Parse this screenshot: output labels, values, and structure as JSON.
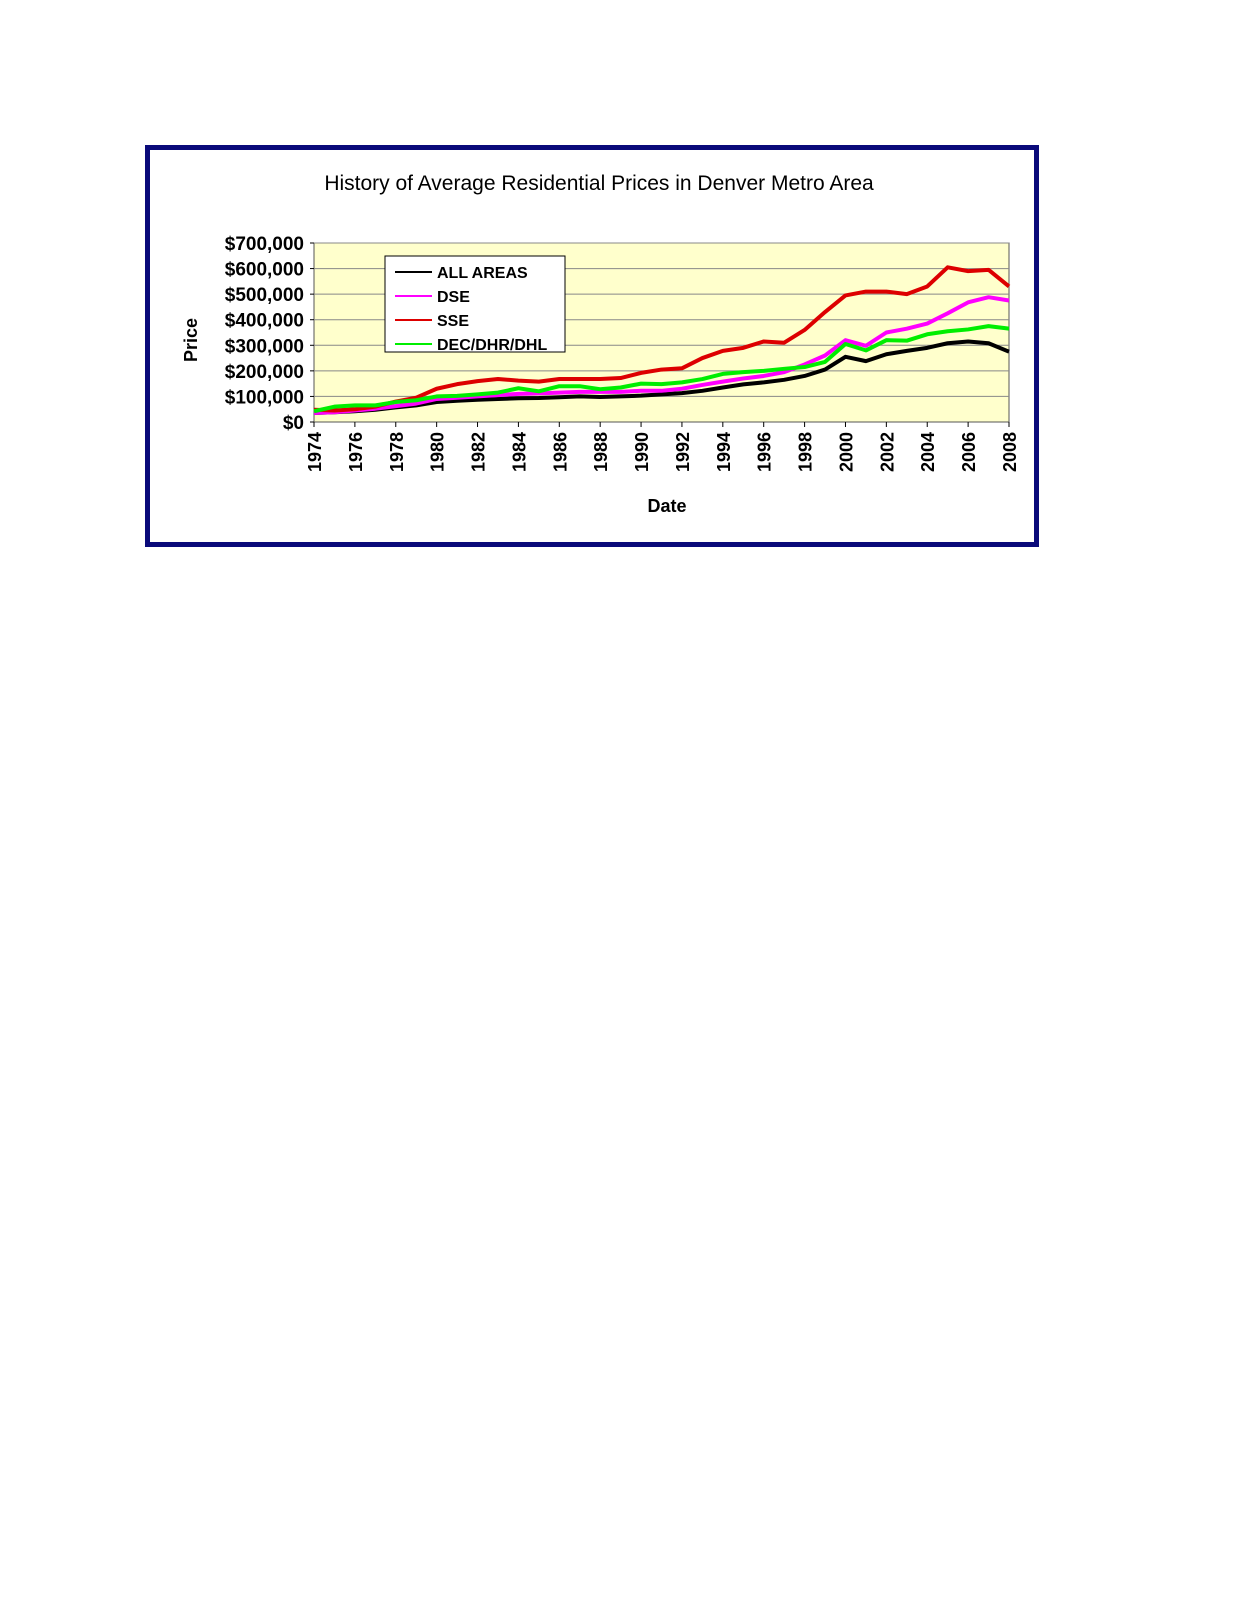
{
  "chart_data": {
    "type": "line",
    "title": "History of Average Residential Prices in Denver Metro Area",
    "xlabel": "Date",
    "ylabel": "Price",
    "ylim": [
      0,
      700000
    ],
    "yticks": [
      "$0",
      "$100,000",
      "$200,000",
      "$300,000",
      "$400,000",
      "$500,000",
      "$600,000",
      "$700,000"
    ],
    "xticks": [
      "1974",
      "1976",
      "1978",
      "1980",
      "1982",
      "1984",
      "1986",
      "1988",
      "1990",
      "1992",
      "1994",
      "1996",
      "1998",
      "2000",
      "2002",
      "2004",
      "2006",
      "2008"
    ],
    "x": [
      1974,
      1975,
      1976,
      1977,
      1978,
      1979,
      1980,
      1981,
      1982,
      1983,
      1984,
      1985,
      1986,
      1987,
      1988,
      1989,
      1990,
      1991,
      1992,
      1993,
      1994,
      1995,
      1996,
      1997,
      1998,
      1999,
      2000,
      2001,
      2002,
      2003,
      2004,
      2005,
      2006,
      2007,
      2008
    ],
    "grid": true,
    "legend": "top-left",
    "plot_background": "#ffffcc",
    "series": [
      {
        "name": "ALL AREAS",
        "color": "#000000",
        "values": [
          35000,
          38000,
          42000,
          48000,
          57000,
          65000,
          78000,
          83000,
          87000,
          90000,
          93000,
          94000,
          97000,
          100000,
          98000,
          100000,
          103000,
          108000,
          113000,
          122000,
          135000,
          147000,
          155000,
          165000,
          180000,
          205000,
          255000,
          238000,
          265000,
          278000,
          290000,
          308000,
          315000,
          308000,
          275000
        ]
      },
      {
        "name": "DSE",
        "color": "#ff00ff",
        "values": [
          35000,
          38000,
          45000,
          52000,
          62000,
          72000,
          90000,
          95000,
          100000,
          105000,
          110000,
          112000,
          115000,
          118000,
          118000,
          118000,
          122000,
          122000,
          130000,
          145000,
          158000,
          170000,
          180000,
          195000,
          225000,
          260000,
          320000,
          298000,
          350000,
          365000,
          385000,
          425000,
          468000,
          488000,
          475000
        ]
      },
      {
        "name": "SSE",
        "color": "#dd0000",
        "values": [
          48000,
          45000,
          50000,
          60000,
          80000,
          95000,
          130000,
          148000,
          160000,
          168000,
          162000,
          158000,
          168000,
          168000,
          168000,
          172000,
          192000,
          205000,
          210000,
          250000,
          278000,
          290000,
          315000,
          310000,
          360000,
          430000,
          495000,
          510000,
          510000,
          500000,
          530000,
          605000,
          590000,
          595000,
          530000
        ]
      },
      {
        "name": "DEC/DHR/DHL",
        "color": "#00ee00",
        "values": [
          42000,
          60000,
          65000,
          65000,
          78000,
          85000,
          100000,
          102000,
          108000,
          115000,
          132000,
          120000,
          140000,
          140000,
          128000,
          135000,
          150000,
          148000,
          155000,
          168000,
          188000,
          195000,
          200000,
          208000,
          215000,
          235000,
          305000,
          280000,
          320000,
          318000,
          343000,
          355000,
          362000,
          375000,
          365000
        ]
      }
    ]
  }
}
